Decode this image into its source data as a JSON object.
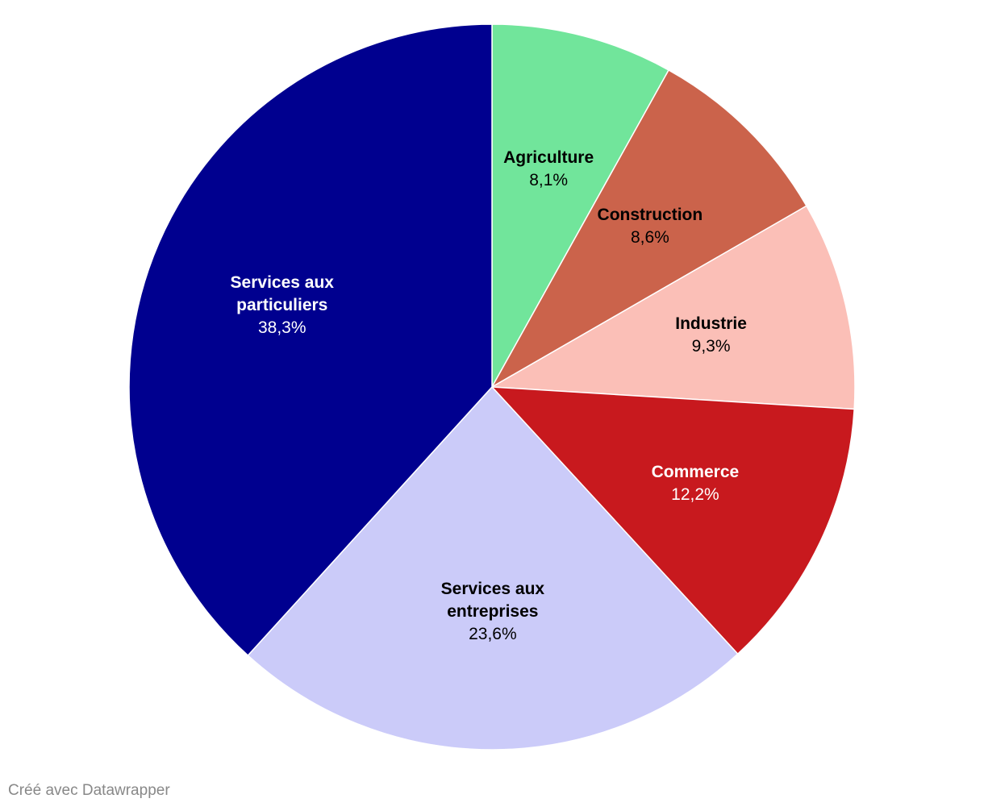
{
  "chart_data": {
    "type": "pie",
    "categories": [
      "Agriculture",
      "Construction",
      "Industrie",
      "Commerce",
      "Services aux entreprises",
      "Services aux particuliers"
    ],
    "values": [
      8.1,
      8.6,
      9.3,
      12.2,
      23.6,
      38.3
    ],
    "value_labels": [
      "8,1%",
      "8,6%",
      "9,3%",
      "12,2%",
      "23,6%",
      "38,3%"
    ],
    "colors": [
      "#71e59b",
      "#cb634b",
      "#fbbfb7",
      "#c8191e",
      "#cbcbf9",
      "#00008f"
    ]
  },
  "footer": "Créé avec Datawrapper"
}
